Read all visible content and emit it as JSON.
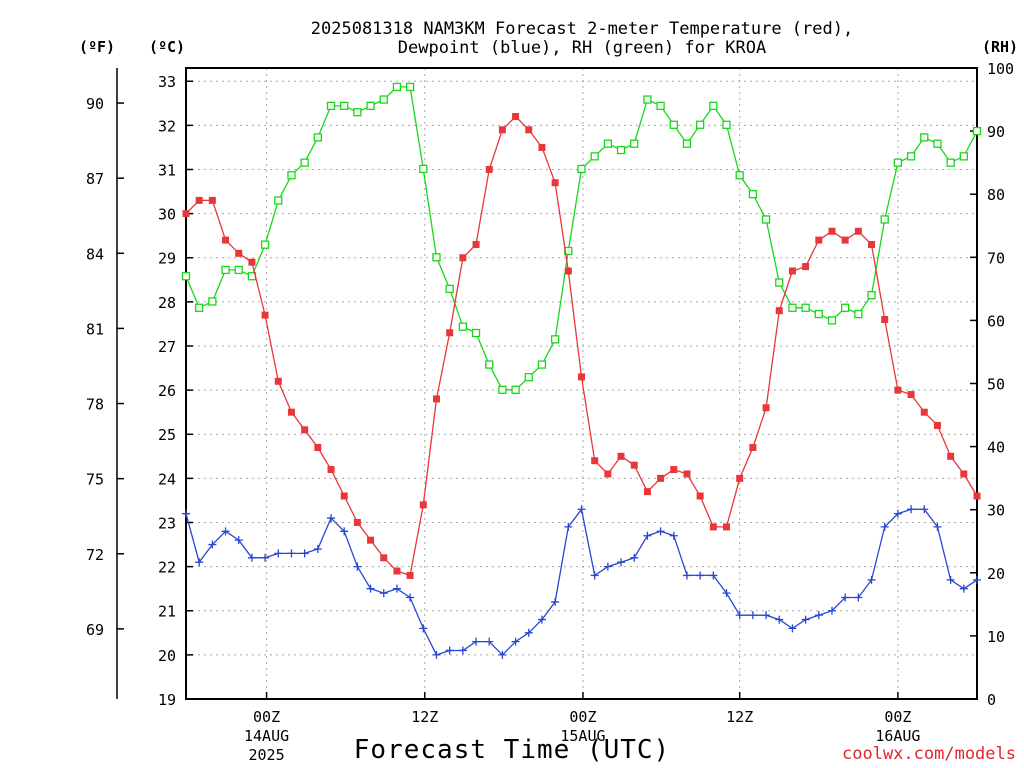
{
  "chart_data": {
    "type": "line",
    "title": {
      "line1": "2025081318 NAM3KM Forecast 2-meter Temperature (red),",
      "line2": "Dewpoint (blue), RH (green) for KROA"
    },
    "xlabel": "Forecast Time (UTC)",
    "credit": "coolwx.com/models",
    "axes": {
      "fahrenheit": {
        "label": "(ºF)",
        "ticks": [
          "69",
          "72",
          "75",
          "78",
          "81",
          "84",
          "87",
          "90"
        ],
        "range": [
          66.2,
          91.4
        ]
      },
      "celsius": {
        "label": "(ºC)",
        "ticks": [
          "19",
          "20",
          "21",
          "22",
          "23",
          "24",
          "25",
          "26",
          "27",
          "28",
          "29",
          "30",
          "31",
          "32",
          "33"
        ],
        "range": [
          19,
          33.3
        ]
      },
      "rh": {
        "label": "(RH)",
        "ticks": [
          "0",
          "10",
          "20",
          "30",
          "40",
          "50",
          "60",
          "70",
          "80",
          "90",
          "100"
        ],
        "range": [
          0,
          100
        ]
      },
      "x": {
        "unit": "forecast hour",
        "range": [
          0,
          54
        ],
        "ticks": [
          {
            "hour": 5.5,
            "label": "00Z",
            "date": "14AUG",
            "year": "2025"
          },
          {
            "hour": 16.3,
            "label": "12Z",
            "date": "",
            "year": ""
          },
          {
            "hour": 27.1,
            "label": "00Z",
            "date": "15AUG",
            "year": ""
          },
          {
            "hour": 37.8,
            "label": "12Z",
            "date": "",
            "year": ""
          },
          {
            "hour": 48.6,
            "label": "00Z",
            "date": "16AUG",
            "year": ""
          }
        ]
      }
    },
    "grid": true,
    "series": [
      {
        "name": "Temperature",
        "unit": "C",
        "color": "#e8373a",
        "marker": "filled-square",
        "values": [
          30.0,
          30.3,
          30.3,
          29.4,
          29.1,
          28.9,
          27.7,
          26.2,
          25.5,
          25.1,
          24.7,
          24.2,
          23.6,
          23.0,
          22.6,
          22.2,
          21.9,
          21.8,
          23.4,
          25.8,
          27.3,
          29.0,
          29.3,
          31.0,
          31.9,
          32.2,
          31.9,
          31.5,
          30.7,
          28.7,
          26.3,
          24.4,
          24.1,
          24.5,
          24.3,
          23.7,
          24.0,
          24.2,
          24.1,
          23.6,
          22.9,
          22.9,
          24.0,
          24.7,
          25.6,
          27.8,
          28.7,
          28.8,
          29.4,
          29.6,
          29.4,
          29.6,
          29.3,
          27.6,
          26.0,
          25.9,
          25.5,
          25.2,
          24.5,
          24.1,
          23.6
        ]
      },
      {
        "name": "Dewpoint",
        "unit": "C",
        "color": "#2846d2",
        "marker": "plus",
        "values": [
          23.2,
          22.1,
          22.5,
          22.8,
          22.6,
          22.2,
          22.2,
          22.3,
          22.3,
          22.3,
          22.4,
          23.1,
          22.8,
          22.0,
          21.5,
          21.4,
          21.5,
          21.3,
          20.6,
          20.0,
          20.1,
          20.1,
          20.3,
          20.3,
          20.0,
          20.3,
          20.5,
          20.8,
          21.2,
          22.9,
          23.3,
          21.8,
          22.0,
          22.1,
          22.2,
          22.7,
          22.8,
          22.7,
          21.8,
          21.8,
          21.8,
          21.4,
          20.9,
          20.9,
          20.9,
          20.8,
          20.6,
          20.8,
          20.9,
          21.0,
          21.3,
          21.3,
          21.7,
          22.9,
          23.2,
          23.3,
          23.3,
          22.9,
          21.7,
          21.5,
          21.7
        ]
      },
      {
        "name": "RH",
        "unit": "%",
        "color": "#17d817",
        "marker": "open-square",
        "values": [
          67,
          62,
          63,
          68,
          68,
          67,
          72,
          79,
          83,
          85,
          89,
          94,
          94,
          93,
          94,
          95,
          97,
          97,
          84,
          70,
          65,
          59,
          58,
          53,
          49,
          49,
          51,
          53,
          57,
          71,
          84,
          86,
          88,
          87,
          88,
          95,
          94,
          91,
          88,
          91,
          94,
          91,
          83,
          80,
          76,
          66,
          62,
          62,
          61,
          60,
          62,
          61,
          64,
          76,
          85,
          86,
          89,
          88,
          85,
          86,
          90
        ]
      }
    ]
  }
}
